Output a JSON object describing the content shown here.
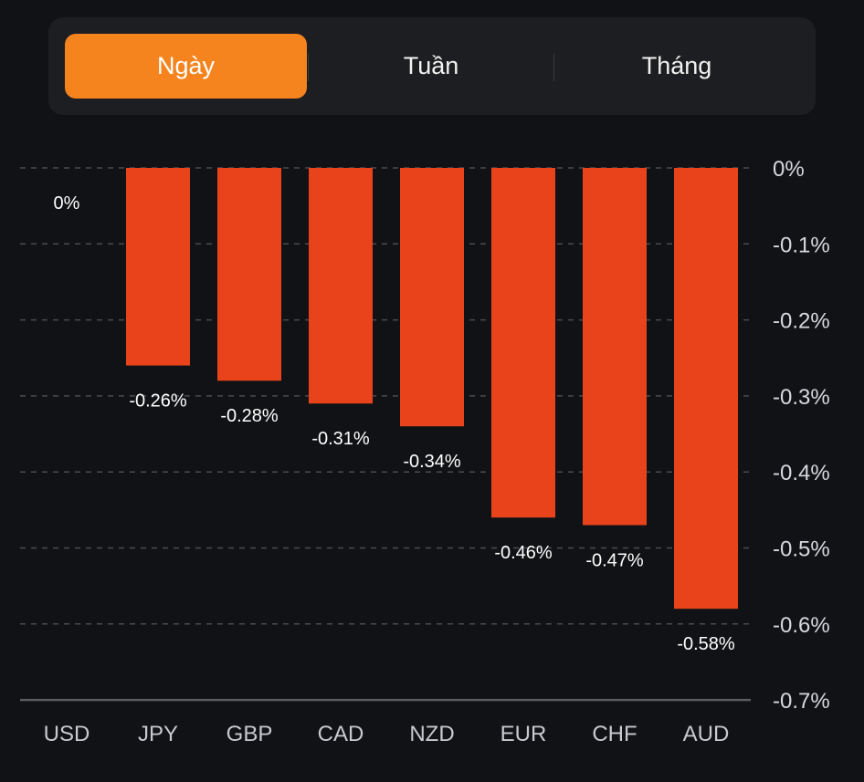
{
  "tabs": [
    {
      "label": "Ngày",
      "active": true
    },
    {
      "label": "Tuần",
      "active": false
    },
    {
      "label": "Tháng",
      "active": false
    }
  ],
  "colors": {
    "bar": "#e8431b",
    "accent": "#f5841f",
    "background": "#111215"
  },
  "chart_data": {
    "type": "bar",
    "title": "",
    "xlabel": "",
    "ylabel": "",
    "categories": [
      "USD",
      "JPY",
      "GBP",
      "CAD",
      "NZD",
      "EUR",
      "CHF",
      "AUD"
    ],
    "values": [
      0,
      -0.26,
      -0.28,
      -0.31,
      -0.34,
      -0.46,
      -0.47,
      -0.58
    ],
    "value_labels": [
      "0%",
      "-0.26%",
      "-0.28%",
      "-0.31%",
      "-0.34%",
      "-0.46%",
      "-0.47%",
      "-0.58%"
    ],
    "unit": "%",
    "ylim": [
      -0.7,
      0
    ],
    "yticks": [
      0,
      -0.1,
      -0.2,
      -0.3,
      -0.4,
      -0.5,
      -0.6,
      -0.7
    ],
    "ytick_labels": [
      "0%",
      "-0.1%",
      "-0.2%",
      "-0.3%",
      "-0.4%",
      "-0.5%",
      "-0.6%",
      "-0.7%"
    ],
    "y_axis_side": "right",
    "grid": true
  }
}
